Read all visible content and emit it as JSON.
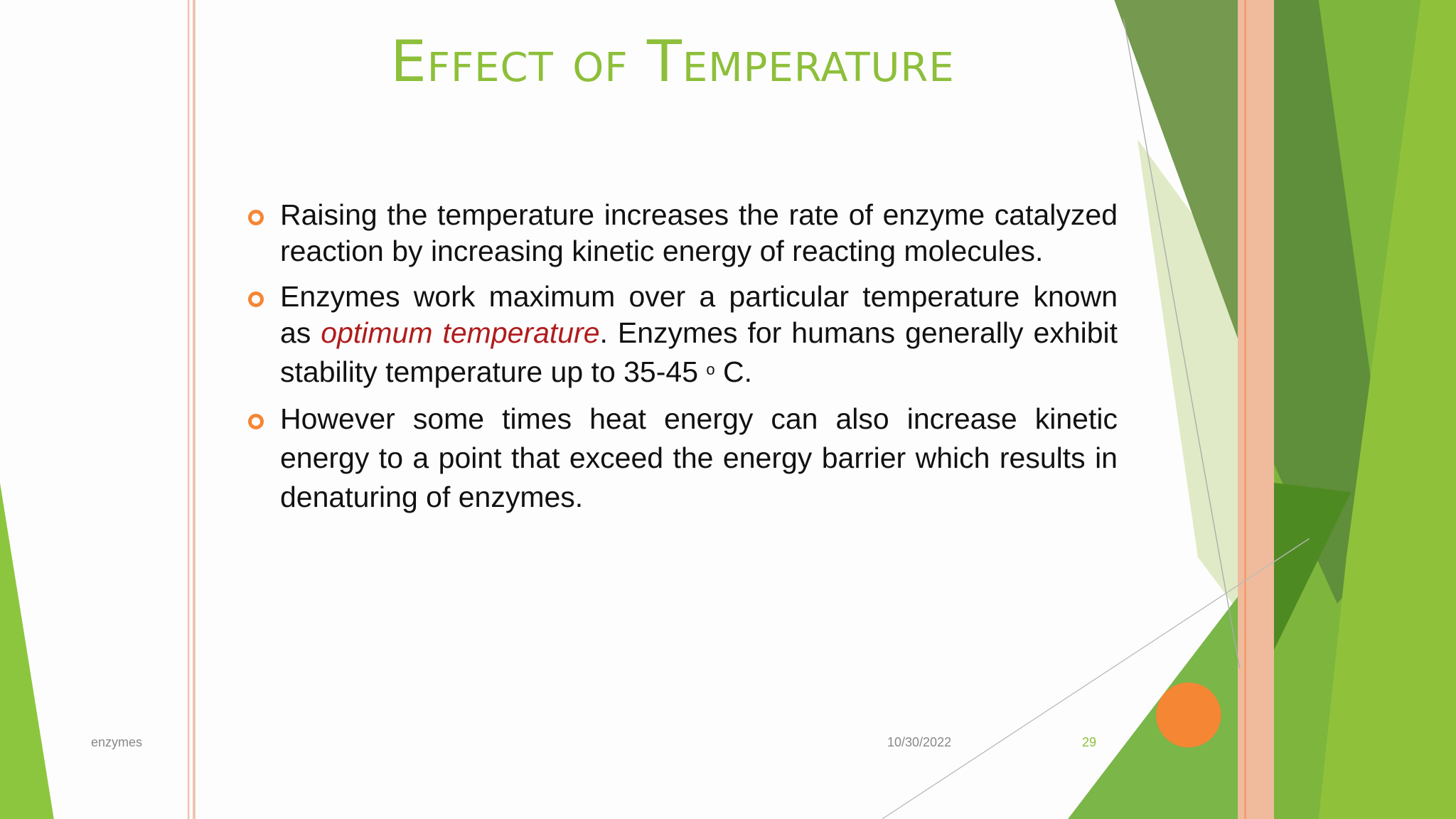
{
  "slide": {
    "title": "Effect of Temperature",
    "bullets": [
      {
        "runs": [
          {
            "text": "Raising the temperature increases the rate of enzyme catalyzed reaction by increasing kinetic energy of reacting molecules."
          }
        ]
      },
      {
        "runs": [
          {
            "text": "Enzymes work maximum over a particular temperature known as "
          },
          {
            "text": "optimum temperature",
            "format": "italic"
          },
          {
            "text": ". Enzymes for humans generally exhibit stability temperature up to 35-45 "
          },
          {
            "text": "o",
            "format": "superscript"
          },
          {
            "text": "  C."
          }
        ]
      },
      {
        "runs": [
          {
            "text": "However some times heat energy can also increase kinetic energy to a point that exceed the energy barrier which results in denaturing of enzymes."
          }
        ]
      }
    ],
    "footer": {
      "left": "enzymes",
      "date": "10/30/2022",
      "page": "29"
    }
  }
}
